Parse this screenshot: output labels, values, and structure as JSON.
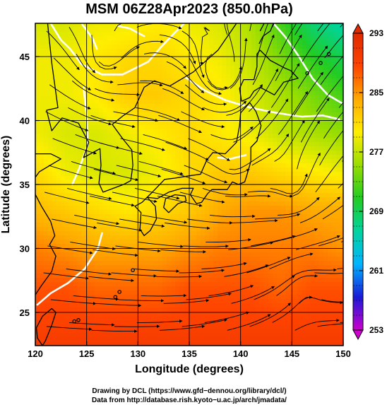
{
  "chart_data": {
    "type": "heatmap",
    "title": "MSM 06Z28Apr2023 (850.0hPa)",
    "xlabel": "Longitude (degrees)",
    "ylabel": "Latitude (degrees)",
    "xlim": [
      120,
      150
    ],
    "ylim": [
      22.4,
      47.6
    ],
    "xticks": [
      120,
      125,
      130,
      135,
      140,
      145,
      150
    ],
    "yticks": [
      25,
      30,
      35,
      40,
      45
    ],
    "grid": true,
    "overlays": [
      "wind streamlines",
      "coastlines",
      "white contour lines"
    ],
    "colorbar": {
      "min": 253,
      "max": 293,
      "ticks": [
        253,
        261,
        269,
        277,
        285,
        293
      ],
      "colors": [
        "#cc00cc",
        "#1a1ad8",
        "#00b4ff",
        "#00d4a0",
        "#22cc22",
        "#99dd00",
        "#ffee00",
        "#ffaa00",
        "#ff4400",
        "#e02a00"
      ],
      "extend": "both"
    },
    "fill_field": {
      "lon": [
        120,
        123,
        126,
        129,
        132,
        135,
        138,
        141,
        144,
        147,
        150
      ],
      "lat": [
        47.6,
        45,
        42,
        39,
        36,
        33,
        30,
        27,
        24,
        22.4
      ],
      "values": [
        [
          278,
          278,
          279,
          279,
          280,
          279,
          278,
          276,
          272,
          268,
          266
        ],
        [
          279,
          279,
          280,
          281,
          281,
          280,
          279,
          277,
          274,
          271,
          269
        ],
        [
          279,
          279,
          280,
          282,
          282,
          281,
          280,
          278,
          276,
          274,
          272
        ],
        [
          279,
          278,
          278,
          279,
          280,
          281,
          280,
          279,
          277,
          276,
          275
        ],
        [
          281,
          279,
          278,
          278,
          279,
          281,
          282,
          282,
          281,
          280,
          279
        ],
        [
          283,
          282,
          281,
          280,
          281,
          282,
          284,
          285,
          285,
          284,
          284
        ],
        [
          286,
          285,
          284,
          284,
          284,
          285,
          286,
          286,
          286,
          286,
          285
        ],
        [
          288,
          288,
          287,
          287,
          287,
          288,
          288,
          288,
          287,
          288,
          288
        ],
        [
          289,
          289,
          289,
          289,
          289,
          289,
          289,
          289,
          289,
          289,
          289
        ],
        [
          290,
          290,
          290,
          290,
          290,
          290,
          290,
          290,
          290,
          290,
          290
        ]
      ]
    }
  },
  "credits": {
    "line1": "Drawing by DCL (https://www.gfd−dennou.org/library/dcl/)",
    "line2": "Data from http://database.rish.kyoto−u.ac.jp/arch/jmadata/"
  }
}
